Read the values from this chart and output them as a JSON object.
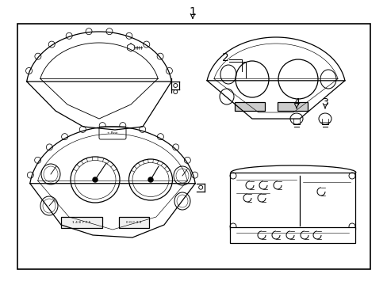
{
  "background_color": "#ffffff",
  "line_color": "#000000",
  "label_1": "1",
  "label_2": "2",
  "label_3": "3",
  "label_4": "4",
  "figsize": [
    4.89,
    3.6
  ],
  "dpi": 100
}
